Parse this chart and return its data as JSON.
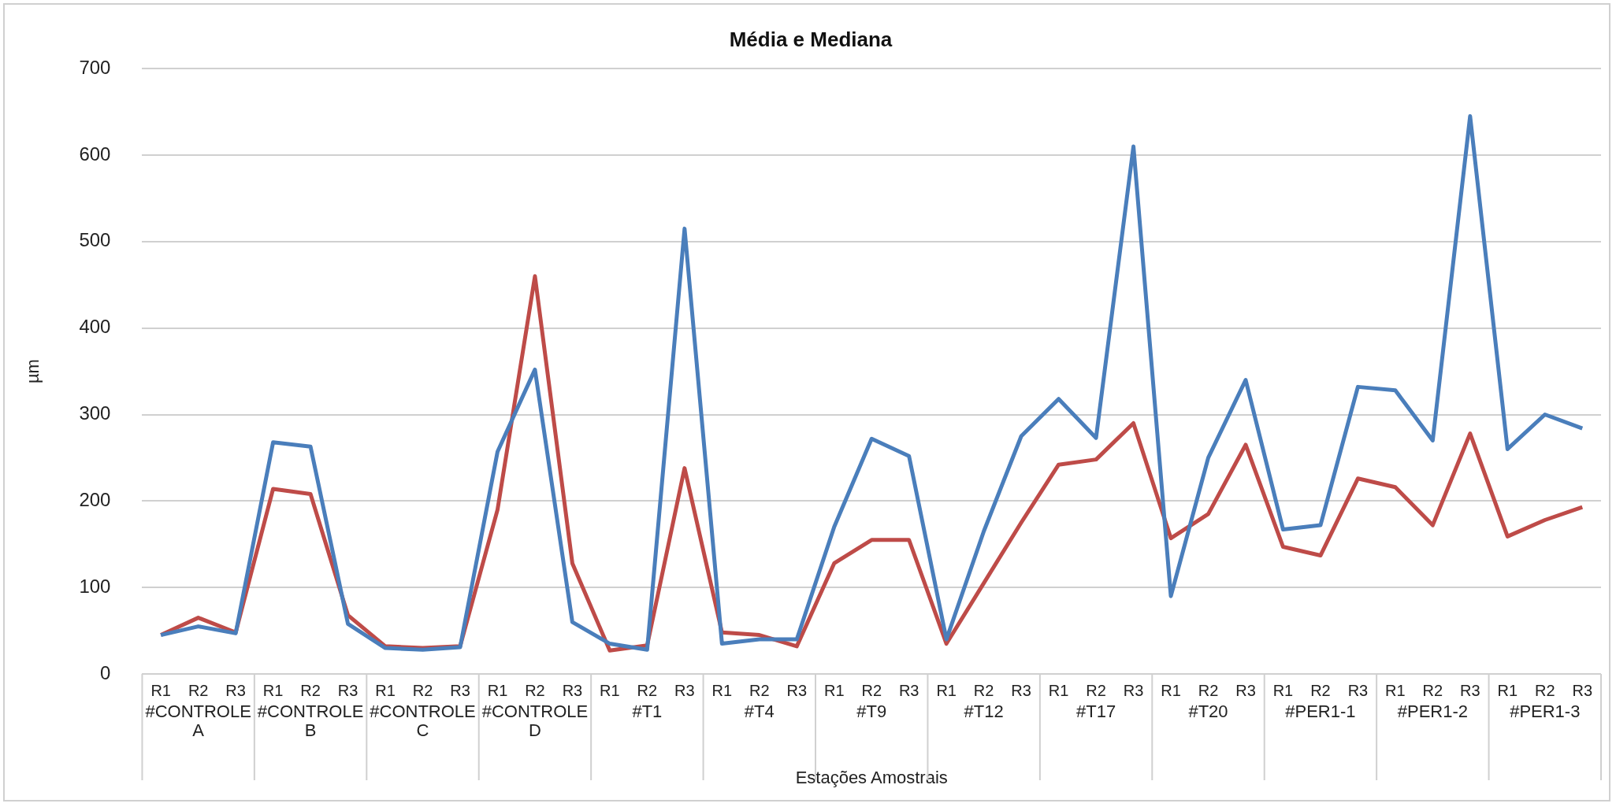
{
  "chart_data": {
    "type": "line",
    "title": "Média e Mediana",
    "xlabel": "Estações Amostrais",
    "ylabel": "µm",
    "categories": [
      "R1",
      "R2",
      "R3",
      "R1",
      "R2",
      "R3",
      "R1",
      "R2",
      "R3",
      "R1",
      "R2",
      "R3",
      "R1",
      "R2",
      "R3",
      "R1",
      "R2",
      "R3",
      "R1",
      "R2",
      "R3",
      "R1",
      "R2",
      "R3",
      "R1",
      "R2",
      "R3",
      "R1",
      "R2",
      "R3",
      "R1",
      "R2",
      "R3",
      "R1",
      "R2",
      "R3",
      "R1",
      "R2",
      "R3"
    ],
    "series": [
      {
        "color": "#4a7ebb",
        "values": [
          45,
          55,
          47,
          268,
          263,
          58,
          30,
          28,
          31,
          257,
          352,
          60,
          35,
          28,
          515,
          35,
          40,
          40,
          170,
          272,
          252,
          40,
          165,
          275,
          318,
          273,
          610,
          90,
          250,
          340,
          167,
          172,
          332,
          328,
          270,
          645,
          260,
          300,
          284
        ]
      },
      {
        "color": "#be4b48",
        "values": [
          45,
          65,
          48,
          214,
          208,
          68,
          32,
          30,
          32,
          190,
          460,
          128,
          27,
          33,
          238,
          48,
          45,
          32,
          128,
          155,
          155,
          35,
          105,
          175,
          242,
          248,
          290,
          157,
          185,
          265,
          147,
          137,
          226,
          216,
          172,
          278,
          159,
          178,
          193
        ]
      }
    ],
    "annotations": [
      "#CONTROLE A",
      "#CONTROLE B",
      "#CONTROLE C",
      "#CONTROLE D",
      "#T1",
      "#T4",
      "#T9",
      "#T12",
      "#T17",
      "#T20",
      "#PER1-1",
      "#PER1-2",
      "#PER1-3"
    ],
    "ylim": [
      0,
      700
    ],
    "yticks": [
      0,
      100,
      200,
      300,
      400,
      500,
      600,
      700
    ],
    "grid": "y",
    "legend": false,
    "marker": "none",
    "line_style": "solid"
  }
}
